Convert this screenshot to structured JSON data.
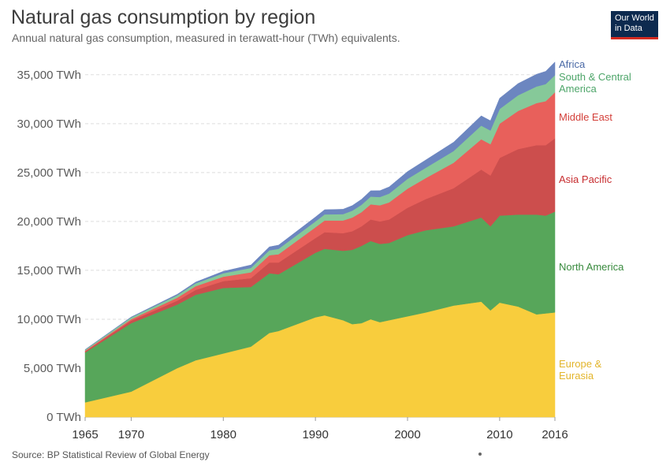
{
  "header": {
    "title": "Natural gas consumption by region",
    "subtitle": "Annual natural gas consumption, measured in terawatt-hour (TWh) equivalents.",
    "logo_line1": "Our World",
    "logo_line2": "in Data"
  },
  "footer": {
    "source": "Source: BP Statistical Review of Global Energy"
  },
  "chart_data": {
    "type": "area",
    "stacked": true,
    "title": "Natural gas consumption by region",
    "subtitle": "Annual natural gas consumption, measured in terawatt-hour (TWh) equivalents.",
    "xlim": [
      1965,
      2016
    ],
    "ylim": [
      0,
      37000
    ],
    "x_ticks": [
      1965,
      1970,
      1980,
      1990,
      2000,
      2010,
      2016
    ],
    "y_ticks": [
      {
        "value": 0,
        "label": "0 TWh"
      },
      {
        "value": 5000,
        "label": "5,000 TWh"
      },
      {
        "value": 10000,
        "label": "10,000 TWh"
      },
      {
        "value": 15000,
        "label": "15,000 TWh"
      },
      {
        "value": 20000,
        "label": "20,000 TWh"
      },
      {
        "value": 25000,
        "label": "25,000 TWh"
      },
      {
        "value": 30000,
        "label": "30,000 TWh"
      },
      {
        "value": 35000,
        "label": "35,000 TWh"
      }
    ],
    "grid": "horizontal dashed",
    "legend_position": "right, inline labels",
    "x": [
      1965,
      1970,
      1975,
      1977,
      1980,
      1983,
      1985,
      1986,
      1990,
      1991,
      1993,
      1994,
      1995,
      1996,
      1997,
      1998,
      2000,
      2002,
      2005,
      2008,
      2009,
      2010,
      2012,
      2014,
      2015,
      2016
    ],
    "series": [
      {
        "name": "Europe & Eurasia",
        "color": "#f8cd3d",
        "values": [
          1500,
          2600,
          5000,
          5800,
          6500,
          7200,
          8600,
          8800,
          10200,
          10400,
          9900,
          9500,
          9600,
          10000,
          9700,
          9900,
          10300,
          10700,
          11400,
          11800,
          10900,
          11700,
          11300,
          10500,
          10600,
          10700
        ]
      },
      {
        "name": "North America",
        "color": "#57a65a",
        "values": [
          5100,
          7000,
          6500,
          6700,
          6700,
          6100,
          6100,
          5800,
          6600,
          6800,
          7100,
          7600,
          7900,
          8000,
          8000,
          7900,
          8300,
          8400,
          8100,
          8600,
          8600,
          8900,
          9400,
          10200,
          10000,
          10300
        ]
      },
      {
        "name": "Asia Pacific",
        "color": "#cc4e4d",
        "values": [
          100,
          250,
          400,
          500,
          700,
          900,
          1100,
          1200,
          1500,
          1700,
          1800,
          1900,
          2000,
          2200,
          2300,
          2400,
          2800,
          3200,
          3900,
          4900,
          5200,
          5900,
          6700,
          7100,
          7200,
          7500
        ]
      },
      {
        "name": "Middle East",
        "color": "#e8605b",
        "values": [
          80,
          150,
          300,
          380,
          450,
          600,
          750,
          850,
          1100,
          1200,
          1300,
          1400,
          1450,
          1550,
          1650,
          1750,
          1950,
          2150,
          2600,
          3100,
          3200,
          3500,
          3900,
          4300,
          4500,
          4700
        ]
      },
      {
        "name": "South & Central America",
        "color": "#86c999",
        "values": [
          100,
          180,
          250,
          290,
          350,
          450,
          500,
          550,
          600,
          620,
          650,
          700,
          750,
          790,
          850,
          900,
          1000,
          1050,
          1200,
          1400,
          1400,
          1500,
          1600,
          1700,
          1750,
          1750
        ]
      },
      {
        "name": "Africa",
        "color": "#6c86c0",
        "values": [
          20,
          50,
          100,
          130,
          200,
          300,
          350,
          380,
          450,
          480,
          500,
          520,
          560,
          600,
          650,
          680,
          750,
          800,
          900,
          1000,
          1000,
          1100,
          1200,
          1250,
          1300,
          1350
        ]
      }
    ],
    "label_colors": {
      "Africa": "#4a69a6",
      "South & Central America": "#4da569",
      "Middle East": "#d33f39",
      "Asia Pacific": "#c72c2f",
      "North America": "#388a3d",
      "Europe & Eurasia": "#e3b52b"
    }
  }
}
